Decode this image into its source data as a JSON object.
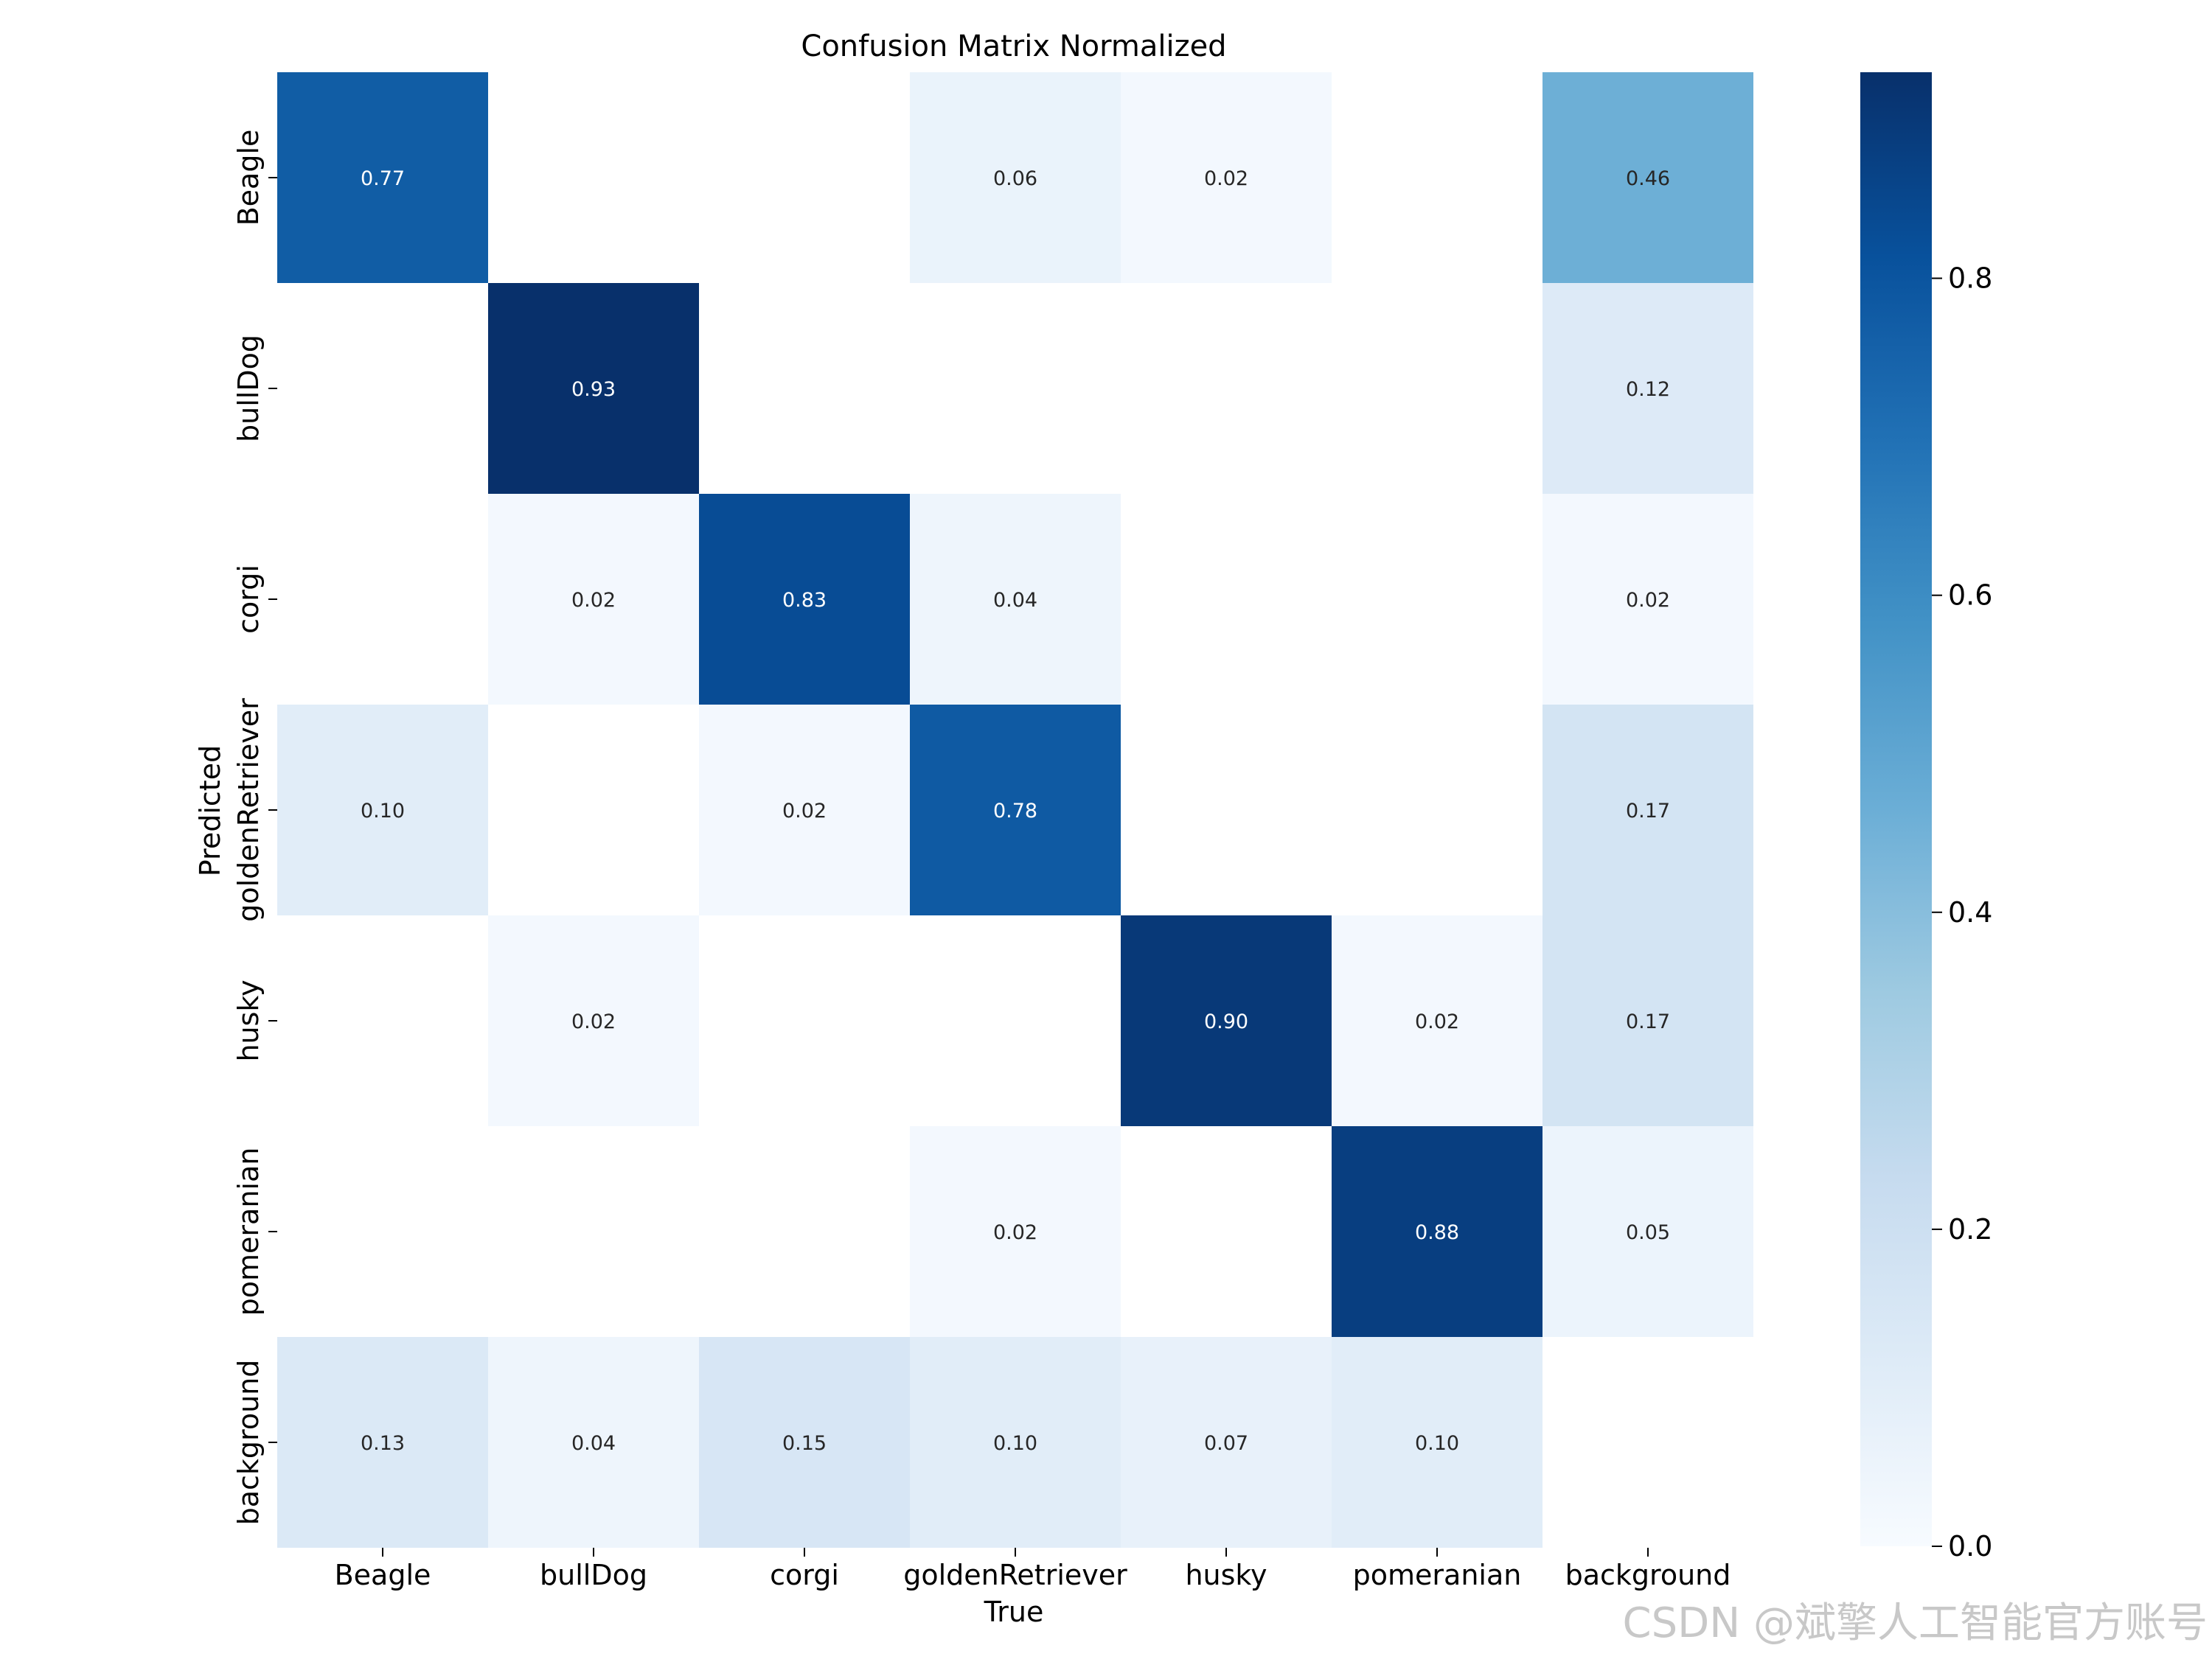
{
  "chart_data": {
    "type": "heatmap",
    "title": "Confusion Matrix Normalized",
    "xlabel": "True",
    "ylabel": "Predicted",
    "x_categories": [
      "Beagle",
      "bullDog",
      "corgi",
      "goldenRetriever",
      "husky",
      "pomeranian",
      "background"
    ],
    "y_categories": [
      "Beagle",
      "bullDog",
      "corgi",
      "goldenRetriever",
      "husky",
      "pomeranian",
      "background"
    ],
    "values": [
      [
        0.77,
        null,
        null,
        0.06,
        0.02,
        null,
        0.46
      ],
      [
        null,
        0.93,
        null,
        null,
        null,
        null,
        0.12
      ],
      [
        null,
        0.02,
        0.83,
        0.04,
        null,
        null,
        0.02
      ],
      [
        0.1,
        null,
        0.02,
        0.78,
        null,
        null,
        0.17
      ],
      [
        null,
        0.02,
        null,
        null,
        0.9,
        0.02,
        0.17
      ],
      [
        null,
        null,
        null,
        0.02,
        null,
        0.88,
        0.05
      ],
      [
        0.13,
        0.04,
        0.15,
        0.1,
        0.07,
        0.1,
        null
      ]
    ],
    "colormap": "Blues",
    "vmin": 0.0,
    "vmax": 0.93,
    "colorbar_ticks": [
      "0.0",
      "0.2",
      "0.4",
      "0.6",
      "0.8"
    ],
    "colorbar_tick_values": [
      0.0,
      0.2,
      0.4,
      0.6,
      0.8
    ],
    "legend_position": "right colorbar"
  },
  "watermark": "CSDN @斌擎人工智能官方账号"
}
